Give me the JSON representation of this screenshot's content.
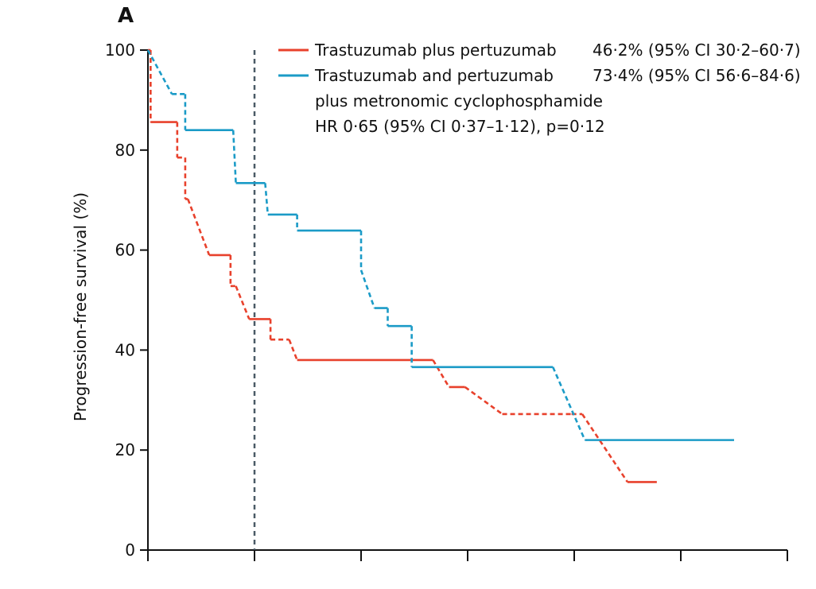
{
  "chart_data": {
    "type": "line",
    "panel_label": "A",
    "title": "",
    "xlabel": "",
    "ylabel": "Progression-free survival (%)",
    "xlim": [
      0,
      12
    ],
    "ylim": [
      0,
      100
    ],
    "x_ticks": [
      0,
      2,
      4,
      6,
      8,
      10,
      12
    ],
    "y_ticks": [
      0,
      20,
      40,
      60,
      80,
      100
    ],
    "y_tick_labels": [
      "0",
      "20",
      "40",
      "60",
      "80",
      "100"
    ],
    "landmark_x": 2,
    "grid": false,
    "legend_position": "top-right",
    "series": [
      {
        "name": "Trastuzumab plus pertuzumab",
        "stat": "46·2% (95% CI 30·2–60·7)",
        "color": "#e8412c",
        "points": [
          [
            0,
            100
          ],
          [
            0.05,
            100
          ],
          [
            0.05,
            85.6
          ],
          [
            0.55,
            85.6
          ],
          [
            0.55,
            78.5
          ],
          [
            0.7,
            78.5
          ],
          [
            0.7,
            70.2
          ],
          [
            0.75,
            70.2
          ],
          [
            1.15,
            59.0
          ],
          [
            1.55,
            59.0
          ],
          [
            1.55,
            52.8
          ],
          [
            1.65,
            52.8
          ],
          [
            1.9,
            46.2
          ],
          [
            2.3,
            46.2
          ],
          [
            2.3,
            42.1
          ],
          [
            2.65,
            42.1
          ],
          [
            2.8,
            38.0
          ],
          [
            5.35,
            38.0
          ],
          [
            5.65,
            32.6
          ],
          [
            5.95,
            32.6
          ],
          [
            6.65,
            27.2
          ],
          [
            7.95,
            27.2
          ],
          [
            8.15,
            27.2
          ],
          [
            9.0,
            13.6
          ],
          [
            9.55,
            13.6
          ]
        ],
        "dashed_segments": [
          0,
          1,
          2,
          3,
          4,
          5,
          6,
          7,
          8,
          9,
          10,
          11,
          12,
          13,
          14,
          15,
          16,
          17,
          18,
          19,
          20,
          21,
          22,
          23,
          24,
          25,
          26,
          27,
          28
        ],
        "solid_intervals": [
          [
            0.05,
            0.55
          ],
          [
            1.15,
            1.55
          ],
          [
            1.9,
            2.3
          ],
          [
            2.65,
            2.65
          ],
          [
            2.8,
            5.35
          ],
          [
            5.65,
            6.65
          ],
          [
            9.0,
            9.55
          ]
        ]
      },
      {
        "name": "Trastuzumab and pertuzumab plus metronomic cyclophosphamide",
        "stat": "73·4% (95% CI 56·6–84·6)",
        "color": "#1b9bc7",
        "points": [
          [
            0,
            100
          ],
          [
            0.45,
            91.2
          ],
          [
            0.7,
            91.2
          ],
          [
            0.7,
            84.0
          ],
          [
            1.6,
            84.0
          ],
          [
            1.65,
            73.4
          ],
          [
            2.2,
            73.4
          ],
          [
            2.25,
            67.1
          ],
          [
            2.8,
            67.1
          ],
          [
            2.8,
            63.9
          ],
          [
            4.0,
            63.9
          ],
          [
            4.0,
            56.0
          ],
          [
            4.25,
            48.4
          ],
          [
            4.5,
            48.4
          ],
          [
            4.5,
            44.8
          ],
          [
            4.95,
            44.8
          ],
          [
            4.95,
            36.6
          ],
          [
            7.6,
            36.6
          ],
          [
            8.2,
            22.0
          ],
          [
            11.0,
            22.0
          ]
        ],
        "solid_intervals": [
          [
            0.7,
            1.6
          ],
          [
            1.65,
            2.2
          ],
          [
            2.25,
            2.8
          ],
          [
            2.8,
            4.0
          ],
          [
            4.25,
            4.5
          ],
          [
            4.5,
            4.95
          ],
          [
            4.95,
            7.6
          ],
          [
            8.2,
            11.0
          ]
        ]
      }
    ],
    "annotations": {
      "legend_line1_name": "Trastuzumab plus pertuzumab",
      "legend_line2_name": "Trastuzumab and pertuzumab",
      "legend_line3": "plus metronomic cyclophosphamide",
      "hr_text": "HR 0·65 (95% CI 0·37–1·12), p=0·12"
    }
  }
}
